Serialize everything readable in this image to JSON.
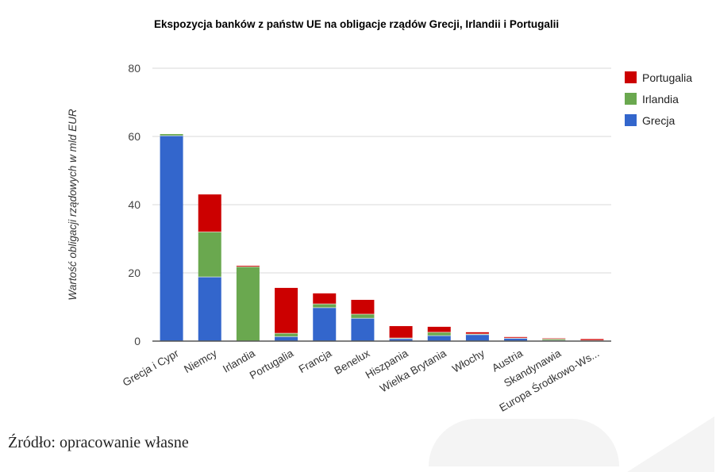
{
  "chart_data": {
    "type": "bar",
    "stacked": true,
    "title": "Ekspozycja banków z państw UE na obligacje rządów Grecji, Irlandii i Portugalii",
    "xlabel": "",
    "ylabel": "Wartość obligacji rządowych w mld EUR",
    "ylim": [
      0,
      80
    ],
    "yticks": [
      0,
      20,
      40,
      60,
      80
    ],
    "grid": true,
    "legend_position": "right",
    "categories": [
      "Grecja i Cypr",
      "Niemcy",
      "Irlandia",
      "Portugalia",
      "Francja",
      "Benelux",
      "Hiszpania",
      "Wielka Brytania",
      "Włochy",
      "Austria",
      "Skandynawia",
      "Europa Środkowo-Ws..."
    ],
    "series": [
      {
        "name": "Grecja",
        "color": "#3366cc",
        "values": [
          60.2,
          18.8,
          0.0,
          1.3,
          9.8,
          6.7,
          0.7,
          1.6,
          1.9,
          0.8,
          0.2,
          0.1
        ]
      },
      {
        "name": "Irlandia",
        "color": "#6aa84f",
        "values": [
          0.5,
          13.2,
          21.8,
          1.0,
          1.1,
          1.2,
          0.2,
          1.0,
          0.2,
          0.1,
          0.4,
          0.1
        ]
      },
      {
        "name": "Portugalia",
        "color": "#cc0000",
        "values": [
          0.0,
          11.0,
          0.3,
          13.3,
          3.1,
          4.2,
          3.5,
          1.6,
          0.5,
          0.3,
          0.2,
          0.4
        ]
      }
    ]
  },
  "legend": [
    {
      "label": "Portugalia",
      "color": "#cc0000"
    },
    {
      "label": "Irlandia",
      "color": "#6aa84f"
    },
    {
      "label": "Grecja",
      "color": "#3366cc"
    }
  ],
  "source_note": "Źródło: opracowanie własne"
}
